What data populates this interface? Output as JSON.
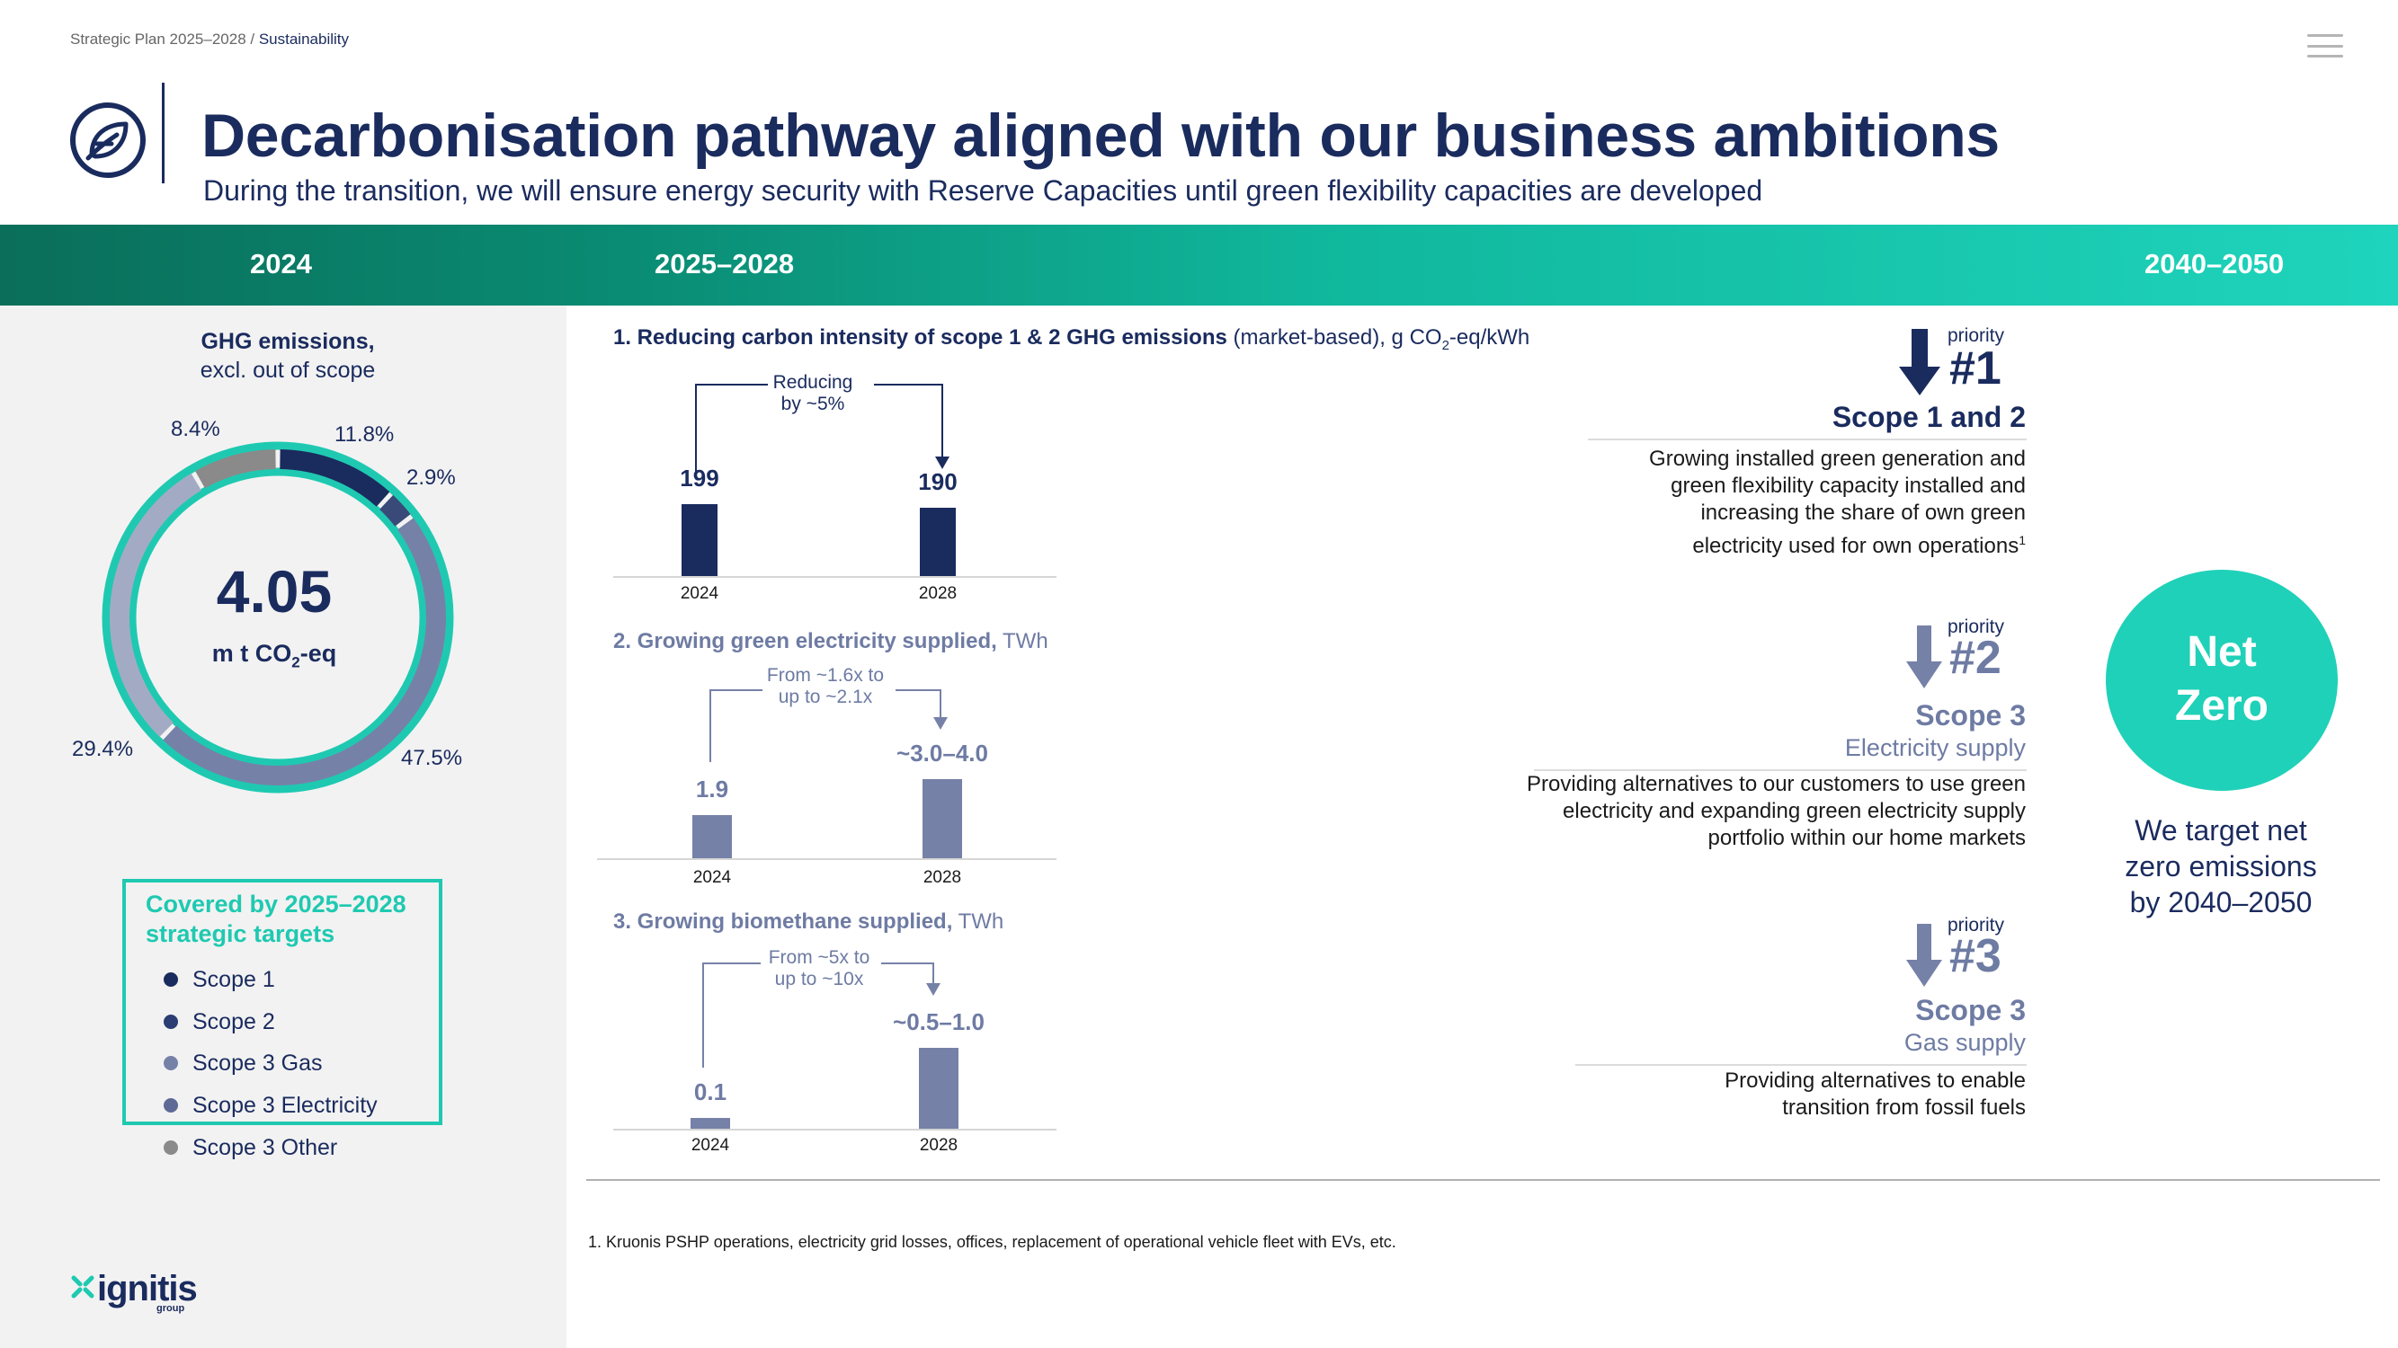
{
  "breadcrumb": {
    "path": "Strategic Plan 2025–2028 / ",
    "current": "Sustainability"
  },
  "header": {
    "title": "Decarbonisation pathway aligned with our business ambitions",
    "subtitle": "During the transition, we will ensure energy security with Reserve Capacities until green flexibility capacities are developed"
  },
  "timeline": {
    "col1": "2024",
    "col2": "2025–2028",
    "col3": "2040–2050"
  },
  "ghg": {
    "title": "GHG emissions,",
    "subtitle": "excl. out of scope",
    "total": "4.05",
    "unit_prefix": "m t CO",
    "unit_sub": "2",
    "unit_suffix": "-eq",
    "labels": {
      "scope1": "11.8%",
      "scope2": "2.9%",
      "scope3e": "47.5%",
      "scope3g": "29.4%",
      "scope3o": "8.4%"
    }
  },
  "legend": {
    "title": "Covered by 2025–2028 strategic targets",
    "items": [
      {
        "label": "Scope 1",
        "color": "#1a2b5e"
      },
      {
        "label": "Scope 2",
        "color": "#2b3d72"
      },
      {
        "label": "Scope 3 Gas",
        "color": "#7681a8"
      },
      {
        "label": "Scope 3 Electricity",
        "color": "#5d6a96"
      },
      {
        "label": "Scope 3 Other",
        "color": "#8a8a8a"
      }
    ]
  },
  "section1": {
    "title_bold": "1. Reducing carbon intensity of scope 1 & 2 GHG emissions",
    "title_rest_a": " (market-based), g CO",
    "title_rest_sub": "2",
    "title_rest_b": "-eq/kWh",
    "anno": [
      "Reducing",
      "by ~5%"
    ]
  },
  "section2": {
    "title_bold": "2. Growing green electricity supplied,",
    "title_rest": " TWh",
    "anno": [
      "From ~1.6x to",
      "up to ~2.1x"
    ]
  },
  "section3": {
    "title_bold": "3. Growing biomethane supplied,",
    "title_rest": " TWh",
    "anno": [
      "From ~5x to",
      "up to ~10x"
    ]
  },
  "priorities": [
    {
      "small": "priority",
      "num": "#1",
      "scope": "Scope 1 and 2",
      "sub": "",
      "desc": [
        "Growing installed green generation and",
        "green flexibility capacity installed and",
        "increasing the share of own green",
        "electricity used for own operations"
      ],
      "sup": "1"
    },
    {
      "small": "priority",
      "num": "#2",
      "scope": "Scope 3",
      "sub": "Electricity supply",
      "desc": [
        "Providing alternatives to our customers to use green",
        "electricity and expanding green electricity supply",
        "portfolio within our home markets"
      ]
    },
    {
      "small": "priority",
      "num": "#3",
      "scope": "Scope 3",
      "sub": "Gas supply",
      "desc": [
        "Providing alternatives to enable",
        "transition from fossil fuels"
      ]
    }
  ],
  "netzero": {
    "line1": "Net",
    "line2": "Zero",
    "text": [
      "We target net",
      "zero emissions",
      "by 2040–2050"
    ]
  },
  "footnote": "1. Kruonis PSHP operations, electricity grid losses, offices, replacement of operational vehicle fleet with EVs, etc.",
  "brand": {
    "name": "ignitis",
    "sub": "group"
  },
  "chart_data": [
    {
      "type": "pie",
      "title": "GHG emissions, excl. out of scope",
      "total": 4.05,
      "unit": "m t CO2-eq",
      "slices": [
        {
          "label": "Scope 1",
          "value": 11.8,
          "color": "#1a2b5e"
        },
        {
          "label": "Scope 2",
          "value": 2.9,
          "color": "#3a4a78"
        },
        {
          "label": "Scope 3 Electricity",
          "value": 47.5,
          "color": "#7681a8"
        },
        {
          "label": "Scope 3 Gas",
          "value": 29.4,
          "color": "#a3abc4"
        },
        {
          "label": "Scope 3 Other",
          "value": 8.4,
          "color": "#8a8a8a"
        }
      ]
    },
    {
      "type": "bar",
      "title": "1. Reducing carbon intensity of scope 1 & 2 GHG emissions (market-based), g CO2-eq/kWh",
      "categories": [
        "2024",
        "2028"
      ],
      "values": [
        199,
        190
      ],
      "value_labels": [
        "199",
        "190"
      ],
      "ylim": [
        0,
        199
      ],
      "color": "#1a2b5e"
    },
    {
      "type": "bar",
      "title": "2. Growing green electricity supplied, TWh",
      "categories": [
        "2024",
        "2028"
      ],
      "values": [
        1.9,
        3.5
      ],
      "value_labels": [
        "1.9",
        "~3.0–4.0"
      ],
      "ylim": [
        0,
        3.5
      ],
      "color": "#7681a8"
    },
    {
      "type": "bar",
      "title": "3. Growing biomethane supplied, TWh",
      "categories": [
        "2024",
        "2028"
      ],
      "values": [
        0.1,
        0.75
      ],
      "value_labels": [
        "0.1",
        "~0.5–1.0"
      ],
      "ylim": [
        0,
        0.75
      ],
      "color": "#7681a8"
    }
  ]
}
